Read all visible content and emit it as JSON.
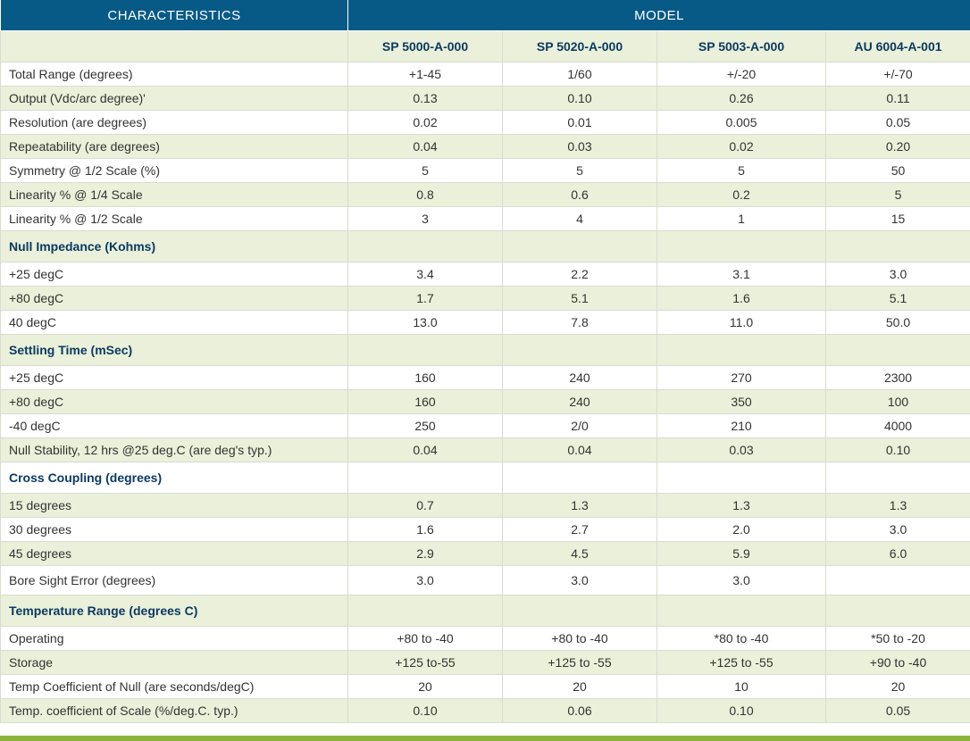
{
  "header": {
    "characteristics": "CHARACTERISTICS",
    "model": "MODEL",
    "models": [
      "SP 5000-A-000",
      "SP 5020-A-000",
      "SP 5003-A-000",
      "AU 6004-A-001"
    ]
  },
  "rows": [
    {
      "label": "Total Range (degrees)",
      "values": [
        "+1-45",
        "1/60",
        "+/-20",
        "+/-70"
      ]
    },
    {
      "label": "Output (Vdc/arc degree)'",
      "values": [
        "0.13",
        "0.10",
        "0.26",
        "0.11"
      ]
    },
    {
      "label": "Resolution (are degrees)",
      "values": [
        "0.02",
        "0.01",
        "0.005",
        "0.05"
      ]
    },
    {
      "label": "Repeatability (are degrees)",
      "values": [
        "0.04",
        "0.03",
        "0.02",
        "0.20"
      ]
    },
    {
      "label": "Symmetry @ 1/2 Scale (%)",
      "values": [
        "5",
        "5",
        "5",
        "50"
      ]
    },
    {
      "label": "Linearity % @ 1/4 Scale",
      "values": [
        "0.8",
        "0.6",
        "0.2",
        "5"
      ]
    },
    {
      "label": "Linearity % @ 1/2 Scale",
      "values": [
        "3",
        "4",
        "1",
        "15"
      ]
    },
    {
      "label": "Null Impedance (Kohms)",
      "values": [
        "",
        "",
        "",
        ""
      ],
      "section": true
    },
    {
      "label": "+25 degC",
      "values": [
        "3.4",
        "2.2",
        "3.1",
        "3.0"
      ]
    },
    {
      "label": "+80 degC",
      "values": [
        "1.7",
        "5.1",
        "1.6",
        "5.1"
      ]
    },
    {
      "label": "40 degC",
      "values": [
        "13.0",
        "7.8",
        "11.0",
        "50.0"
      ]
    },
    {
      "label": "Settling Time (mSec)",
      "values": [
        "",
        "",
        "",
        ""
      ],
      "section": true
    },
    {
      "label": "+25 degC",
      "values": [
        "160",
        "240",
        "270",
        "2300"
      ]
    },
    {
      "label": "+80 degC",
      "values": [
        "160",
        "240",
        "350",
        "100"
      ]
    },
    {
      "label": "-40 degC",
      "values": [
        "250",
        "2/0",
        "210",
        "4000"
      ]
    },
    {
      "label": "Null Stability, 12 hrs @25 deg.C (are deg's typ.)",
      "values": [
        "0.04",
        "0.04",
        "0.03",
        "0.10"
      ]
    },
    {
      "label": "Cross Coupling (degrees)",
      "values": [
        "",
        "",
        "",
        ""
      ],
      "section": true
    },
    {
      "label": "15 degrees",
      "values": [
        "0.7",
        "1.3",
        "1.3",
        "1.3"
      ]
    },
    {
      "label": "30 degrees",
      "values": [
        "1.6",
        "2.7",
        "2.0",
        "3.0"
      ]
    },
    {
      "label": "45 degrees",
      "values": [
        "2.9",
        "4.5",
        "5.9",
        "6.0"
      ]
    },
    {
      "label": "Bore Sight Error (degrees)",
      "values": [
        "3.0",
        "3.0",
        "3.0",
        ""
      ],
      "tall": true
    },
    {
      "label": "Temperature Range (degrees C)",
      "values": [
        "",
        "",
        "",
        ""
      ],
      "section": true
    },
    {
      "label": "Operating",
      "values": [
        "+80 to -40",
        "+80 to -40",
        "*80 to -40",
        "*50 to -20"
      ]
    },
    {
      "label": "Storage",
      "values": [
        "+125 to-55",
        "+125 to -55",
        "+125 to -55",
        "+90 to -40"
      ]
    },
    {
      "label": "Temp Coefficient of Null (are seconds/degC)",
      "values": [
        "20",
        "20",
        "10",
        "20"
      ]
    },
    {
      "label": "Temp. coefficient of Scale (%/deg.C. typ.)",
      "values": [
        "0.10",
        "0.06",
        "0.10",
        "0.05"
      ]
    }
  ],
  "colors": {
    "header_bg": "#085a86",
    "stripe_bg": "#eaf0d9",
    "section_text": "#0b3a62",
    "accent_bar": "#8cb33a"
  }
}
